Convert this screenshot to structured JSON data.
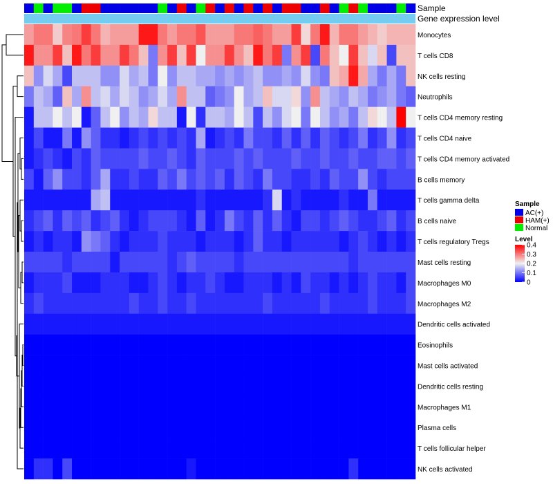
{
  "chart_data": {
    "type": "heatmap",
    "title": "",
    "annotation_labels": {
      "sample": "Sample",
      "expression": "Gene expression level"
    },
    "legend": {
      "sample_title": "Sample",
      "sample_groups": [
        {
          "name": "AC(+)",
          "color": "#0000E6"
        },
        {
          "name": "HAM(+)",
          "color": "#EE0000"
        },
        {
          "name": "Normal",
          "color": "#00EE00"
        }
      ],
      "level_title": "Level",
      "level_ticks": [
        "0.4",
        "0.3",
        "0.2",
        "0.1",
        "0"
      ],
      "level_range": [
        0,
        0.4
      ]
    },
    "colors": {
      "low": "#0000FF",
      "mid": "#F0F0F0",
      "high": "#FF0000",
      "expression_bar": "#74CDF0",
      "dendrogram": "#000000"
    },
    "sample_groups": [
      "AC(+)",
      "Normal",
      "AC(+)",
      "Normal",
      "Normal",
      "AC(+)",
      "HAM(+)",
      "HAM(+)",
      "AC(+)",
      "AC(+)",
      "AC(+)",
      "AC(+)",
      "AC(+)",
      "AC(+)",
      "Normal",
      "AC(+)",
      "HAM(+)",
      "AC(+)",
      "Normal",
      "HAM(+)",
      "AC(+)",
      "HAM(+)",
      "AC(+)",
      "HAM(+)",
      "AC(+)",
      "HAM(+)",
      "AC(+)",
      "HAM(+)",
      "HAM(+)",
      "AC(+)",
      "AC(+)",
      "HAM(+)",
      "AC(+)",
      "Normal",
      "HAM(+)",
      "Normal",
      "AC(+)",
      "AC(+)",
      "AC(+)",
      "Normal",
      "AC(+)"
    ],
    "rows": [
      {
        "label": "Monocytes",
        "values": [
          0.27,
          0.3,
          0.3,
          0.23,
          0.29,
          0.3,
          0.35,
          0.3,
          0.25,
          0.27,
          0.27,
          0.27,
          0.38,
          0.38,
          0.3,
          0.27,
          0.3,
          0.3,
          0.33,
          0.27,
          0.27,
          0.27,
          0.3,
          0.3,
          0.32,
          0.3,
          0.27,
          0.27,
          0.35,
          0.22,
          0.3,
          0.38,
          0.25,
          0.3,
          0.3,
          0.27,
          0.25,
          0.23,
          0.25,
          0.25,
          0.25
        ]
      },
      {
        "label": "T cells CD8",
        "values": [
          0.38,
          0.28,
          0.28,
          0.35,
          0.24,
          0.38,
          0.3,
          0.35,
          0.28,
          0.28,
          0.35,
          0.3,
          0.24,
          0.1,
          0.28,
          0.35,
          0.24,
          0.35,
          0.2,
          0.28,
          0.28,
          0.35,
          0.28,
          0.24,
          0.38,
          0.3,
          0.35,
          0.1,
          0.28,
          0.35,
          0.06,
          0.3,
          0.24,
          0.2,
          0.35,
          0.24,
          0.18,
          0.24,
          0.06,
          0.24,
          0.24
        ]
      },
      {
        "label": "NK cells resting",
        "values": [
          0.24,
          0.12,
          0.18,
          0.14,
          0.06,
          0.16,
          0.16,
          0.16,
          0.12,
          0.12,
          0.18,
          0.14,
          0.16,
          0.1,
          0.2,
          0.12,
          0.16,
          0.16,
          0.14,
          0.14,
          0.12,
          0.14,
          0.12,
          0.14,
          0.16,
          0.12,
          0.12,
          0.14,
          0.12,
          0.18,
          0.12,
          0.1,
          0.24,
          0.26,
          0.38,
          0.26,
          0.14,
          0.1,
          0.14,
          0.1,
          0.24
        ]
      },
      {
        "label": "Neutrophils",
        "values": [
          0.1,
          0.16,
          0.14,
          0.08,
          0.24,
          0.14,
          0.28,
          0.16,
          0.18,
          0.14,
          0.18,
          0.16,
          0.12,
          0.14,
          0.18,
          0.14,
          0.28,
          0.16,
          0.16,
          0.08,
          0.1,
          0.12,
          0.2,
          0.14,
          0.16,
          0.24,
          0.18,
          0.18,
          0.22,
          0.12,
          0.28,
          0.16,
          0.14,
          0.12,
          0.16,
          0.14,
          0.1,
          0.12,
          0.14,
          0.1,
          0.08
        ]
      },
      {
        "label": "T cells CD4 memory resting",
        "values": [
          0.02,
          0.16,
          0.16,
          0.2,
          0.16,
          0.2,
          0.02,
          0.08,
          0.16,
          0.2,
          0.12,
          0.16,
          0.14,
          0.22,
          0.16,
          0.16,
          0.02,
          0.2,
          0.04,
          0.16,
          0.16,
          0.14,
          0.2,
          0.16,
          0.06,
          0.16,
          0.12,
          0.18,
          0.2,
          0.1,
          0.2,
          0.16,
          0.12,
          0.14,
          0.1,
          0.16,
          0.22,
          0.2,
          0.16,
          0.4,
          0.2
        ]
      },
      {
        "label": "T cells CD4 naive",
        "values": [
          0.02,
          0.06,
          0.02,
          0.02,
          0.1,
          0.02,
          0.12,
          0.08,
          0.04,
          0.04,
          0.02,
          0.04,
          0.06,
          0.04,
          0.06,
          0.04,
          0.06,
          0.04,
          0.14,
          0.02,
          0.04,
          0.06,
          0.04,
          0.1,
          0.06,
          0.06,
          0.04,
          0.08,
          0.04,
          0.08,
          0.04,
          0.08,
          0.06,
          0.04,
          0.06,
          0.1,
          0.04,
          0.06,
          0.12,
          0.04,
          0.06
        ]
      },
      {
        "label": "T cells CD4 memory activated",
        "values": [
          0.02,
          0.04,
          0.06,
          0.04,
          0.02,
          0.06,
          0.04,
          0.08,
          0.06,
          0.06,
          0.06,
          0.06,
          0.08,
          0.06,
          0.06,
          0.08,
          0.06,
          0.04,
          0.08,
          0.06,
          0.06,
          0.06,
          0.08,
          0.06,
          0.08,
          0.06,
          0.06,
          0.06,
          0.08,
          0.06,
          0.06,
          0.08,
          0.06,
          0.06,
          0.08,
          0.06,
          0.06,
          0.08,
          0.08,
          0.06,
          0.08
        ]
      },
      {
        "label": "B cells memory",
        "values": [
          0.06,
          0.02,
          0.08,
          0.12,
          0.06,
          0.06,
          0.04,
          0.08,
          0.14,
          0.04,
          0.04,
          0.06,
          0.04,
          0.04,
          0.08,
          0.06,
          0.1,
          0.06,
          0.08,
          0.06,
          0.08,
          0.04,
          0.08,
          0.06,
          0.04,
          0.1,
          0.06,
          0.06,
          0.04,
          0.04,
          0.06,
          0.04,
          0.08,
          0.06,
          0.06,
          0.12,
          0.06,
          0.04,
          0.06,
          0.06,
          0.06
        ]
      },
      {
        "label": "T cells gamma delta",
        "values": [
          0.02,
          0.02,
          0.02,
          0.02,
          0.02,
          0.02,
          0.02,
          0.14,
          0.16,
          0.02,
          0.02,
          0.02,
          0.02,
          0.02,
          0.02,
          0.02,
          0.02,
          0.02,
          0.04,
          0.02,
          0.02,
          0.02,
          0.02,
          0.02,
          0.02,
          0.04,
          0.18,
          0.02,
          0.04,
          0.02,
          0.02,
          0.02,
          0.02,
          0.04,
          0.02,
          0.02,
          0.1,
          0.02,
          0.02,
          0.02,
          0.02
        ]
      },
      {
        "label": "B cells naive",
        "values": [
          0.04,
          0.06,
          0.08,
          0.04,
          0.08,
          0.06,
          0.08,
          0.04,
          0.06,
          0.08,
          0.04,
          0.02,
          0.04,
          0.06,
          0.06,
          0.06,
          0.04,
          0.02,
          0.08,
          0.02,
          0.04,
          0.1,
          0.06,
          0.04,
          0.08,
          0.04,
          0.08,
          0.04,
          0.02,
          0.06,
          0.06,
          0.04,
          0.06,
          0.08,
          0.06,
          0.04,
          0.04,
          0.06,
          0.08,
          0.04,
          0.06
        ]
      },
      {
        "label": "T cells regulatory  Tregs",
        "values": [
          0.02,
          0.04,
          0.02,
          0.04,
          0.04,
          0.02,
          0.12,
          0.1,
          0.08,
          0.04,
          0.02,
          0.04,
          0.04,
          0.04,
          0.06,
          0.04,
          0.04,
          0.04,
          0.02,
          0.04,
          0.04,
          0.04,
          0.02,
          0.04,
          0.08,
          0.04,
          0.04,
          0.02,
          0.04,
          0.04,
          0.04,
          0.04,
          0.04,
          0.02,
          0.04,
          0.06,
          0.04,
          0.02,
          0.04,
          0.02,
          0.04
        ]
      },
      {
        "label": "Mast cells resting",
        "values": [
          0.06,
          0.06,
          0.06,
          0.06,
          0.04,
          0.06,
          0.06,
          0.06,
          0.06,
          0.02,
          0.06,
          0.06,
          0.06,
          0.06,
          0.06,
          0.04,
          0.06,
          0.08,
          0.06,
          0.06,
          0.06,
          0.06,
          0.04,
          0.06,
          0.06,
          0.06,
          0.06,
          0.06,
          0.06,
          0.06,
          0.06,
          0.06,
          0.06,
          0.06,
          0.04,
          0.06,
          0.06,
          0.06,
          0.06,
          0.06,
          0.06
        ]
      },
      {
        "label": "Macrophages M0",
        "values": [
          0.02,
          0.04,
          0.04,
          0.04,
          0.06,
          0.02,
          0.02,
          0.02,
          0.04,
          0.04,
          0.04,
          0.02,
          0.02,
          0.04,
          0.06,
          0.04,
          0.02,
          0.04,
          0.04,
          0.06,
          0.04,
          0.02,
          0.02,
          0.04,
          0.04,
          0.04,
          0.02,
          0.04,
          0.02,
          0.06,
          0.04,
          0.04,
          0.02,
          0.04,
          0.02,
          0.04,
          0.06,
          0.04,
          0.04,
          0.02,
          0.06
        ]
      },
      {
        "label": "Macrophages M2",
        "values": [
          0.04,
          0.06,
          0.04,
          0.04,
          0.04,
          0.04,
          0.04,
          0.04,
          0.04,
          0.04,
          0.04,
          0.06,
          0.04,
          0.04,
          0.06,
          0.04,
          0.04,
          0.06,
          0.04,
          0.04,
          0.04,
          0.04,
          0.04,
          0.04,
          0.04,
          0.06,
          0.04,
          0.04,
          0.04,
          0.04,
          0.04,
          0.06,
          0.04,
          0.04,
          0.04,
          0.04,
          0.06,
          0.04,
          0.04,
          0.04,
          0.06
        ]
      },
      {
        "label": "Dendritic cells activated",
        "values": [
          0.02,
          0.02,
          0.02,
          0.02,
          0.02,
          0.02,
          0.02,
          0.02,
          0.02,
          0.02,
          0.02,
          0.02,
          0.02,
          0.02,
          0.02,
          0.02,
          0.02,
          0.02,
          0.02,
          0.02,
          0.02,
          0.02,
          0.02,
          0.02,
          0.02,
          0.02,
          0.02,
          0.02,
          0.02,
          0.02,
          0.02,
          0.02,
          0.02,
          0.02,
          0.02,
          0.02,
          0.02,
          0.02,
          0.02,
          0.02,
          0.02
        ]
      },
      {
        "label": "Eosinophils",
        "values": [
          0,
          0,
          0,
          0,
          0,
          0,
          0,
          0,
          0,
          0,
          0,
          0,
          0,
          0,
          0,
          0,
          0,
          0,
          0,
          0,
          0,
          0,
          0,
          0,
          0,
          0,
          0,
          0,
          0,
          0,
          0,
          0,
          0,
          0,
          0,
          0,
          0,
          0,
          0,
          0,
          0
        ]
      },
      {
        "label": "Mast cells activated",
        "values": [
          0,
          0,
          0,
          0,
          0,
          0,
          0,
          0,
          0,
          0,
          0,
          0,
          0,
          0,
          0,
          0,
          0,
          0,
          0,
          0,
          0,
          0,
          0,
          0,
          0,
          0,
          0,
          0,
          0,
          0,
          0,
          0,
          0,
          0,
          0,
          0,
          0,
          0,
          0,
          0,
          0
        ]
      },
      {
        "label": "Dendritic cells resting",
        "values": [
          0,
          0,
          0,
          0,
          0,
          0,
          0,
          0,
          0,
          0,
          0,
          0,
          0,
          0,
          0,
          0,
          0,
          0,
          0,
          0,
          0,
          0,
          0,
          0,
          0,
          0,
          0,
          0,
          0,
          0,
          0,
          0,
          0,
          0,
          0,
          0,
          0,
          0,
          0,
          0,
          0
        ]
      },
      {
        "label": "Macrophages M1",
        "values": [
          0,
          0,
          0,
          0,
          0,
          0,
          0,
          0,
          0,
          0,
          0,
          0,
          0,
          0,
          0,
          0,
          0,
          0,
          0,
          0,
          0,
          0,
          0,
          0,
          0,
          0,
          0,
          0,
          0,
          0,
          0,
          0,
          0,
          0,
          0,
          0,
          0,
          0,
          0,
          0,
          0
        ]
      },
      {
        "label": "Plasma cells",
        "values": [
          0,
          0,
          0,
          0,
          0,
          0,
          0,
          0,
          0,
          0,
          0,
          0,
          0,
          0,
          0,
          0,
          0,
          0,
          0,
          0,
          0,
          0,
          0,
          0,
          0,
          0,
          0,
          0,
          0,
          0,
          0,
          0,
          0,
          0,
          0,
          0,
          0,
          0,
          0,
          0,
          0
        ]
      },
      {
        "label": "T cells follicular helper",
        "values": [
          0,
          0,
          0,
          0,
          0,
          0,
          0,
          0,
          0,
          0,
          0,
          0,
          0,
          0,
          0,
          0,
          0,
          0,
          0,
          0,
          0,
          0,
          0,
          0,
          0,
          0,
          0,
          0,
          0,
          0,
          0,
          0,
          0,
          0,
          0,
          0,
          0,
          0,
          0,
          0,
          0
        ]
      },
      {
        "label": "NK cells activated",
        "values": [
          0,
          0.04,
          0.04,
          0,
          0.06,
          0,
          0,
          0,
          0,
          0,
          0,
          0,
          0,
          0,
          0,
          0,
          0,
          0.02,
          0,
          0,
          0,
          0,
          0,
          0,
          0,
          0,
          0,
          0,
          0,
          0,
          0,
          0,
          0,
          0,
          0.04,
          0,
          0,
          0,
          0,
          0,
          0
        ]
      }
    ]
  }
}
